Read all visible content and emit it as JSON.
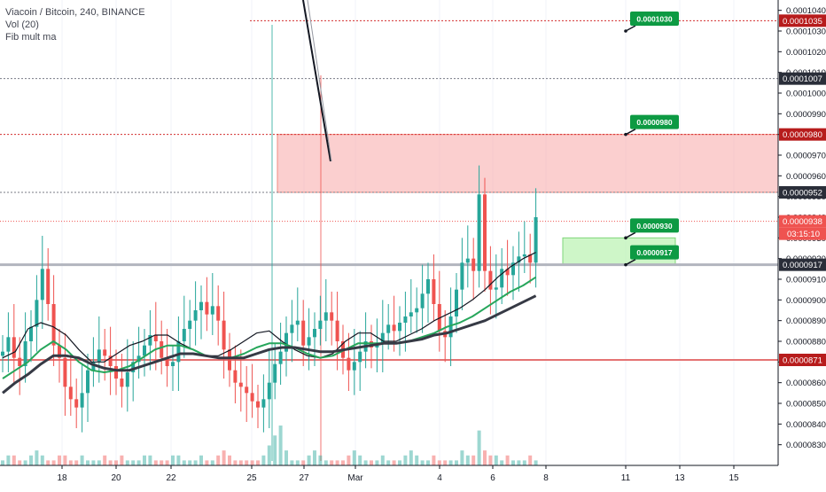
{
  "legend": {
    "title": "Viacoin / Bitcoin, 240, BINANCE",
    "vol": "Vol (20)",
    "fib": "Fib mult ma"
  },
  "chart_data": {
    "type": "candlestick",
    "ylim": [
      8.2e-05,
      0.0001045
    ],
    "y_ticks": [
      "0.0000830",
      "0.0000840",
      "0.0000850",
      "0.0000860",
      "0.0000870",
      "0.0000880",
      "0.0000890",
      "0.0000900",
      "0.0000910",
      "0.0000920",
      "0.0000930",
      "0.0000940",
      "0.0000950",
      "0.0000960",
      "0.0000970",
      "0.0000980",
      "0.0000990",
      "0.0001000",
      "0.0001010",
      "0.0001020",
      "0.0001030",
      "0.0001040"
    ],
    "x_ticks": [
      "18",
      "20",
      "22",
      "25",
      "27",
      "Mar",
      "4",
      "6",
      "8",
      "11",
      "13",
      "15"
    ],
    "series": [
      {
        "values": [
          8.75e-05,
          8.82e-05,
          8.72e-05,
          8.68e-05,
          8.8e-05,
          8.87e-05,
          9e-05,
          9.15e-05,
          8.98e-05,
          8.78e-05,
          8.72e-05,
          8.58e-05,
          8.52e-05,
          8.48e-05,
          8.55e-05,
          8.66e-05,
          8.7e-05,
          8.76e-05,
          8.73e-05,
          8.68e-05,
          8.62e-05,
          8.58e-05,
          8.65e-05,
          8.7e-05,
          8.73e-05,
          8.78e-05,
          8.83e-05,
          8.8e-05,
          8.72e-05,
          8.68e-05,
          8.7e-05,
          8.8e-05,
          8.86e-05,
          8.9e-05,
          8.95e-05,
          8.99e-05,
          8.93e-05,
          8.97e-05,
          8.9e-05,
          8.76e-05,
          8.66e-05,
          8.6e-05,
          8.58e-05,
          8.55e-05,
          8.51e-05,
          8.48e-05,
          8.52e-05,
          8.6e-05,
          8.69e-05,
          8.75e-05,
          8.84e-05,
          8.88e-05,
          8.9e-05,
          8.78e-05,
          8.82e-05,
          8.86e-05,
          8.9e-05,
          8.94e-05,
          8.9e-05,
          8.8e-05,
          8.72e-05,
          8.66e-05,
          8.7e-05,
          8.75e-05,
          8.8e-05,
          8.77e-05,
          8.79e-05,
          8.84e-05,
          8.88e-05,
          8.85e-05,
          8.89e-05,
          8.92e-05,
          8.94e-05,
          8.96e-05,
          9.03e-05,
          9.1e-05,
          8.98e-05,
          8.85e-05,
          8.82e-05,
          8.92e-05,
          9.05e-05,
          9.18e-05,
          9.2e-05,
          9.14e-05,
          9.51e-05,
          9.14e-05,
          9.05e-05,
          9.06e-05,
          9.15e-05,
          9.12e-05,
          9.18e-05,
          9.21e-05,
          9.22e-05,
          9.18e-05,
          9.4e-05
        ]
      }
    ],
    "volume": [
      1,
      2,
      2,
      1,
      1,
      2,
      3,
      2,
      1,
      1,
      2,
      2,
      1,
      1,
      2,
      1,
      1,
      1,
      2,
      1,
      1,
      2,
      1,
      1,
      1,
      2,
      2,
      1,
      1,
      1,
      2,
      2,
      1,
      1,
      1,
      2,
      1,
      1,
      2,
      3,
      2,
      1,
      1,
      1,
      1,
      1,
      2,
      4,
      6,
      8,
      3,
      1,
      1,
      1,
      2,
      3,
      2,
      1,
      1,
      1,
      1,
      2,
      3,
      2,
      1,
      1,
      1,
      2,
      1,
      1,
      1,
      2,
      3,
      2,
      1,
      1,
      2,
      1,
      1,
      1,
      1,
      3,
      2,
      2,
      7,
      3,
      2,
      2,
      1,
      2,
      1,
      1,
      1,
      2,
      1
    ],
    "ma_series": [
      {
        "name": "ma-black-thin",
        "color": "#131722",
        "values": [
          8.72e-05,
          8.75e-05,
          8.86e-05,
          8.89e-05,
          8.87e-05,
          8.83e-05,
          8.76e-05,
          8.7e-05,
          8.7e-05,
          8.74e-05,
          8.78e-05,
          8.8e-05,
          8.83e-05,
          8.83e-05,
          8.79e-05,
          8.76e-05,
          8.73e-05,
          8.73e-05,
          8.76e-05,
          8.8e-05,
          8.84e-05,
          8.85e-05,
          8.8e-05,
          8.76e-05,
          8.73e-05,
          8.72e-05,
          8.74e-05,
          8.8e-05,
          8.84e-05,
          8.84e-05,
          8.8e-05,
          8.8e-05,
          8.83e-05,
          8.86e-05,
          8.9e-05,
          8.93e-05,
          8.96e-05,
          9e-05,
          9.05e-05,
          9.11e-05,
          9.16e-05,
          9.2e-05,
          9.23e-05
        ]
      },
      {
        "name": "ma-green",
        "color": "#26a65b",
        "values": [
          8.62e-05,
          8.66e-05,
          8.7e-05,
          8.76e-05,
          8.8e-05,
          8.76e-05,
          8.7e-05,
          8.66e-05,
          8.65e-05,
          8.66e-05,
          8.68e-05,
          8.72e-05,
          8.76e-05,
          8.78e-05,
          8.78e-05,
          8.76e-05,
          8.73e-05,
          8.72e-05,
          8.72e-05,
          8.74e-05,
          8.77e-05,
          8.79e-05,
          8.79e-05,
          8.77e-05,
          8.74e-05,
          8.72e-05,
          8.73e-05,
          8.76e-05,
          8.79e-05,
          8.79e-05,
          8.79e-05,
          8.79e-05,
          8.8e-05,
          8.82e-05,
          8.84e-05,
          8.87e-05,
          8.89e-05,
          8.92e-05,
          8.96e-05,
          9e-05,
          9.04e-05,
          9.07e-05,
          9.11e-05
        ]
      },
      {
        "name": "ma-dark-thick",
        "color": "#363a45",
        "values": [
          8.55e-05,
          8.6e-05,
          8.64e-05,
          8.69e-05,
          8.73e-05,
          8.73e-05,
          8.72e-05,
          8.69e-05,
          8.67e-05,
          8.66e-05,
          8.66e-05,
          8.68e-05,
          8.7e-05,
          8.72e-05,
          8.74e-05,
          8.74e-05,
          8.73e-05,
          8.72e-05,
          8.72e-05,
          8.72e-05,
          8.74e-05,
          8.76e-05,
          8.77e-05,
          8.77e-05,
          8.76e-05,
          8.75e-05,
          8.75e-05,
          8.76e-05,
          8.77e-05,
          8.78e-05,
          8.79e-05,
          8.79e-05,
          8.8e-05,
          8.81e-05,
          8.83e-05,
          8.84e-05,
          8.86e-05,
          8.88e-05,
          8.9e-05,
          8.93e-05,
          8.96e-05,
          8.99e-05,
          9.02e-05
        ]
      }
    ],
    "price_lines": [
      {
        "value": 0.0001035,
        "label": "0.0001035",
        "style": "dotted-red"
      },
      {
        "value": 0.0001007,
        "label": "0.0001007",
        "style": "dotted-gray"
      },
      {
        "value": 9.8e-05,
        "label": "0.0000980",
        "style": "dotted-red"
      },
      {
        "value": 9.52e-05,
        "label": "0.0000952",
        "style": "dotted-gray"
      },
      {
        "value": 9.38e-05,
        "label": "0.0000938",
        "style": "current-red"
      },
      {
        "value": 9.17e-05,
        "label": "0.0000917",
        "style": "solid-gray"
      },
      {
        "value": 8.71e-05,
        "label": "0.0000871",
        "style": "solid-red"
      }
    ],
    "countdown": "03:15:10",
    "callouts": [
      {
        "value": 0.000103,
        "label": "0.0001030"
      },
      {
        "value": 9.8e-05,
        "label": "0.0000980"
      },
      {
        "value": 9.3e-05,
        "label": "0.0000930"
      },
      {
        "value": 9.17e-05,
        "label": "0.0000917"
      }
    ],
    "zones": [
      {
        "name": "resistance-zone",
        "from": 9.52e-05,
        "to": 9.8e-05,
        "color": "#f7a8a8"
      },
      {
        "name": "target-zone",
        "from": 9.17e-05,
        "to": 9.3e-05,
        "color": "#b9f2b0"
      }
    ],
    "colors": {
      "up": "#26a69a",
      "down": "#ef5350",
      "background": "#ffffff"
    }
  }
}
